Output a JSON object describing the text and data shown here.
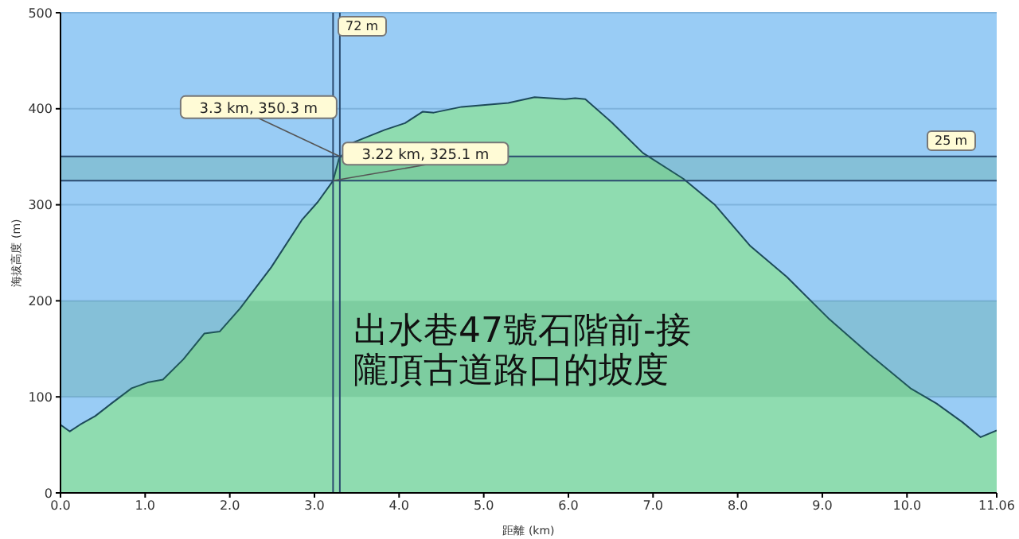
{
  "chart_data": {
    "type": "area",
    "title": "出水巷47號石階前-接隴頂古道路口的坡度",
    "xlabel": "距離 (km)",
    "ylabel": "海拔高度 (m)",
    "series": [
      {
        "color": "#8fdcb0",
        "x": [
          0,
          0.11,
          0.23,
          0.41,
          0.6,
          0.84,
          1.03,
          1.21,
          1.45,
          1.7,
          1.88,
          2.12,
          2.49,
          2.85,
          3.04,
          3.22,
          3.29,
          3.46,
          3.83,
          4.07,
          4.28,
          4.41,
          4.74,
          5.29,
          5.6,
          5.96,
          6.08,
          6.2,
          6.51,
          6.88,
          7.36,
          7.73,
          8.15,
          8.58,
          9.07,
          9.56,
          10.04,
          10.35,
          10.65,
          10.87,
          11.06
        ],
        "values": [
          71,
          64,
          71,
          80,
          93,
          109,
          115,
          118,
          139,
          166,
          168,
          192,
          235,
          284,
          303,
          325,
          348,
          365,
          378,
          385,
          397,
          396,
          402,
          406,
          412,
          410,
          411,
          410,
          386,
          354,
          327,
          300,
          257,
          225,
          182,
          144,
          109,
          93,
          74,
          58,
          65
        ]
      }
    ],
    "xlim": [
      0,
      11.06
    ],
    "xticks": [
      {
        "value": 0,
        "label": "0.0"
      },
      {
        "value": 1,
        "label": "1.0"
      },
      {
        "value": 2,
        "label": "2.0"
      },
      {
        "value": 3,
        "label": "3.0"
      },
      {
        "value": 4,
        "label": "4.0"
      },
      {
        "value": 5,
        "label": "5.0"
      },
      {
        "value": 6,
        "label": "6.0"
      },
      {
        "value": 7,
        "label": "7.0"
      },
      {
        "value": 8,
        "label": "8.0"
      },
      {
        "value": 9,
        "label": "9.0"
      },
      {
        "value": 10,
        "label": "10.0"
      },
      11.06
    ],
    "ylim": [
      0,
      500
    ],
    "yticks": [
      0,
      100,
      200,
      300,
      400,
      500
    ],
    "grid": "y",
    "legend": false,
    "ref_lines": [
      {
        "axis": "x",
        "value": 3.22,
        "color": "#2b4a6f"
      },
      {
        "axis": "x",
        "value": 3.3,
        "color": "#2b4a6f"
      },
      {
        "axis": "y",
        "value": 350.3,
        "color": "#2b4a6f"
      },
      {
        "axis": "y",
        "value": 325.1,
        "color": "#2b4a6f"
      }
    ],
    "bands": [
      {
        "axis": "y",
        "from": 100,
        "to": 200,
        "color": "#2e8b57"
      },
      {
        "axis": "y",
        "from": 325.1,
        "to": 350.3,
        "color": "#2e8b57"
      }
    ],
    "annotations": [
      {
        "text": "3.3 km, 350.3 m",
        "x": 3.3,
        "y": 350.3
      },
      {
        "text": "3.22 km, 325.1 m",
        "x": 3.22,
        "y": 325.1
      },
      "72 m",
      "25 m"
    ]
  }
}
